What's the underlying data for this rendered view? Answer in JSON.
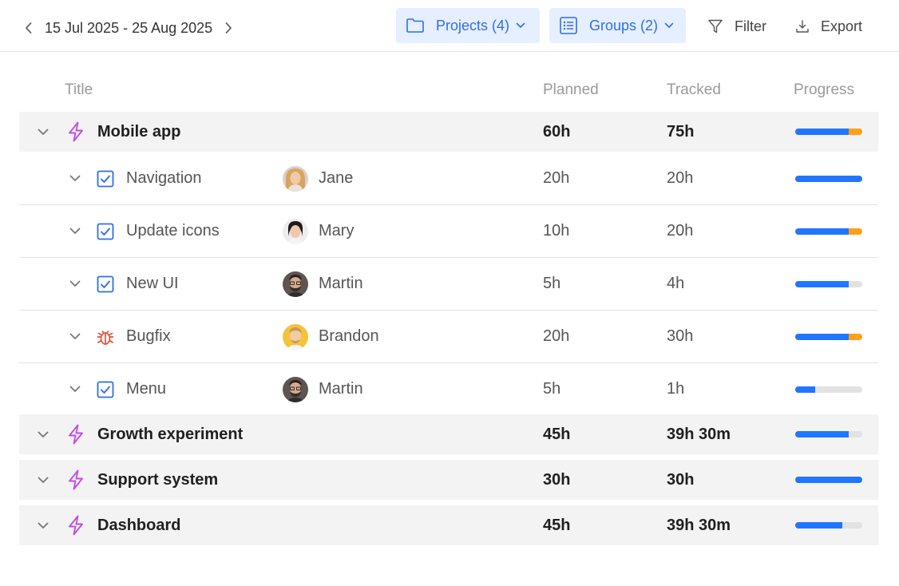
{
  "toolbar": {
    "date_range": "15 Jul 2025 - 25 Aug 2025",
    "projects_label": "Projects (4)",
    "groups_label": "Groups (2)",
    "filter_label": "Filter",
    "export_label": "Export"
  },
  "columns": {
    "title": "Title",
    "planned": "Planned",
    "tracked": "Tracked",
    "progress": "Progress"
  },
  "colors": {
    "accent": "#2f6fe6",
    "pill_bg": "#e6efff",
    "progress_blue": "#2176ff",
    "progress_orange": "#ff9f1a",
    "project_icon": "#c04de8",
    "bug_icon": "#e5533d"
  },
  "rows": [
    {
      "kind": "group",
      "icon": "lightning-icon",
      "title": "Mobile app",
      "planned": "60h",
      "tracked": "75h",
      "progress": 0.8,
      "overrun": 0.2
    },
    {
      "kind": "task",
      "icon": "checkbox-icon",
      "title": "Navigation",
      "assignee": "Jane",
      "avatar": "jane",
      "planned": "20h",
      "tracked": "20h",
      "progress": 1.0,
      "overrun": 0
    },
    {
      "kind": "task",
      "icon": "checkbox-icon",
      "title": "Update icons",
      "assignee": "Mary",
      "avatar": "mary",
      "planned": "10h",
      "tracked": "20h",
      "progress": 0.8,
      "overrun": 0.2
    },
    {
      "kind": "task",
      "icon": "checkbox-icon",
      "title": "New UI",
      "assignee": "Martin",
      "avatar": "martin",
      "planned": "5h",
      "tracked": "4h",
      "progress": 0.8,
      "overrun": 0
    },
    {
      "kind": "task",
      "icon": "bug-icon",
      "title": "Bugfix",
      "assignee": "Brandon",
      "avatar": "brandon",
      "planned": "20h",
      "tracked": "30h",
      "progress": 0.8,
      "overrun": 0.2
    },
    {
      "kind": "task",
      "icon": "checkbox-icon",
      "title": "Menu",
      "assignee": "Martin",
      "avatar": "martin",
      "planned": "5h",
      "tracked": "1h",
      "progress": 0.3,
      "overrun": 0
    },
    {
      "kind": "group",
      "icon": "lightning-icon",
      "title": "Growth experiment",
      "planned": "45h",
      "tracked": "39h 30m",
      "progress": 0.8,
      "overrun": 0
    },
    {
      "kind": "group",
      "icon": "lightning-icon",
      "title": "Support system",
      "planned": "30h",
      "tracked": "30h",
      "progress": 1.0,
      "overrun": 0
    },
    {
      "kind": "group",
      "icon": "lightning-icon",
      "title": "Dashboard",
      "planned": "45h",
      "tracked": "39h 30m",
      "progress": 0.7,
      "overrun": 0
    }
  ]
}
